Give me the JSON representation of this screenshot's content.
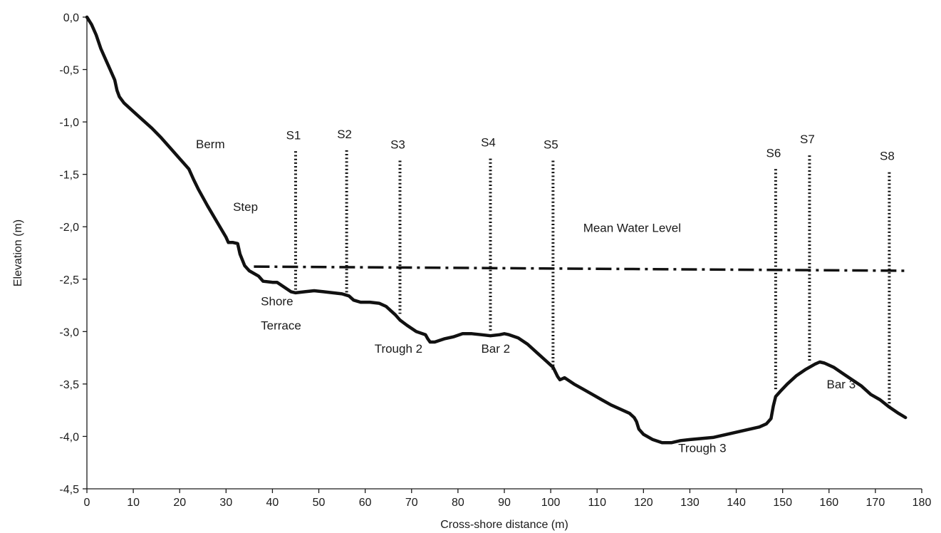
{
  "chart_data": {
    "type": "line",
    "title": "",
    "xlabel": "Cross-shore distance (m)",
    "ylabel": "Elevation (m)",
    "xlim": [
      0,
      180
    ],
    "ylim": [
      -4.5,
      0
    ],
    "x_ticks": [
      0,
      10,
      20,
      30,
      40,
      50,
      60,
      70,
      80,
      90,
      100,
      110,
      120,
      130,
      140,
      150,
      160,
      170,
      180
    ],
    "x_tick_labels": [
      "0",
      "10",
      "20",
      "30",
      "40",
      "50",
      "60",
      "70",
      "80",
      "90",
      "100",
      "110",
      "120",
      "130",
      "140",
      "150",
      "160",
      "170",
      "180"
    ],
    "y_ticks": [
      0,
      -0.5,
      -1,
      -1.5,
      -2,
      -2.5,
      -3,
      -3.5,
      -4,
      -4.5
    ],
    "y_tick_labels": [
      "0,0",
      "-0,5",
      "-1,0",
      "-1,5",
      "-2,0",
      "-2,5",
      "-3,0",
      "-3,5",
      "-4,0",
      "-4,5"
    ],
    "grid": false,
    "legend": "none",
    "series": [
      {
        "x": [
          0,
          1,
          2,
          3,
          4,
          5,
          6,
          6.5,
          7,
          8,
          10,
          12,
          14,
          16,
          18,
          20,
          22,
          23,
          24,
          26,
          28,
          30,
          30.5,
          31.5,
          32.5,
          33,
          34,
          35,
          37,
          38,
          40,
          41,
          42,
          43,
          44,
          45,
          47,
          49,
          51,
          53,
          55,
          56.5,
          57.5,
          59,
          61,
          63,
          64.5,
          65.5,
          66.5,
          67.5,
          69,
          71,
          73,
          73.5,
          74,
          75,
          77,
          79,
          81,
          83,
          85,
          87,
          89,
          90,
          91,
          93,
          95,
          97,
          99,
          100.5,
          101.5,
          102,
          103,
          105,
          107,
          109,
          111,
          113,
          115,
          117,
          118,
          118.5,
          119,
          120,
          122,
          124,
          126,
          128,
          130,
          135,
          140,
          145,
          146.5,
          147.5,
          148,
          148.5,
          149.5,
          151,
          153,
          155,
          157,
          158,
          159,
          161,
          163,
          165,
          167,
          169,
          171,
          173,
          175,
          176.5
        ],
        "y": [
          0,
          -0.07,
          -0.17,
          -0.3,
          -0.4,
          -0.5,
          -0.6,
          -0.7,
          -0.76,
          -0.82,
          -0.9,
          -0.98,
          -1.06,
          -1.15,
          -1.25,
          -1.35,
          -1.45,
          -1.55,
          -1.64,
          -1.8,
          -1.95,
          -2.1,
          -2.15,
          -2.15,
          -2.16,
          -2.26,
          -2.37,
          -2.42,
          -2.47,
          -2.52,
          -2.53,
          -2.53,
          -2.56,
          -2.59,
          -2.62,
          -2.63,
          -2.62,
          -2.61,
          -2.62,
          -2.63,
          -2.64,
          -2.66,
          -2.7,
          -2.72,
          -2.72,
          -2.73,
          -2.76,
          -2.8,
          -2.84,
          -2.89,
          -2.94,
          -3.0,
          -3.03,
          -3.07,
          -3.1,
          -3.1,
          -3.07,
          -3.05,
          -3.02,
          -3.02,
          -3.03,
          -3.04,
          -3.03,
          -3.02,
          -3.03,
          -3.06,
          -3.12,
          -3.2,
          -3.28,
          -3.34,
          -3.43,
          -3.46,
          -3.44,
          -3.5,
          -3.55,
          -3.6,
          -3.65,
          -3.7,
          -3.74,
          -3.78,
          -3.82,
          -3.86,
          -3.93,
          -3.98,
          -4.03,
          -4.06,
          -4.06,
          -4.04,
          -4.03,
          -4.01,
          -3.96,
          -3.91,
          -3.88,
          -3.83,
          -3.71,
          -3.62,
          -3.57,
          -3.5,
          -3.42,
          -3.36,
          -3.31,
          -3.29,
          -3.3,
          -3.34,
          -3.4,
          -3.46,
          -3.52,
          -3.6,
          -3.65,
          -3.72,
          -3.78,
          -3.82
        ]
      },
      {
        "name": "Mean Water Level",
        "x": [
          36,
          177
        ],
        "y": [
          -2.38,
          -2.42
        ]
      }
    ],
    "sensors": [
      {
        "label": "S1",
        "x": 45,
        "y_top": -1.28,
        "y_bottom": -2.6
      },
      {
        "label": "S2",
        "x": 56,
        "y_top": -1.27,
        "y_bottom": -2.63
      },
      {
        "label": "S3",
        "x": 67.5,
        "y_top": -1.37,
        "y_bottom": -2.83
      },
      {
        "label": "S4",
        "x": 87,
        "y_top": -1.35,
        "y_bottom": -3.0
      },
      {
        "label": "S5",
        "x": 100.5,
        "y_top": -1.37,
        "y_bottom": -3.38
      },
      {
        "label": "S6",
        "x": 148.5,
        "y_top": -1.45,
        "y_bottom": -3.57
      },
      {
        "label": "S7",
        "x": 155.8,
        "y_top": -1.32,
        "y_bottom": -3.3
      },
      {
        "label": "S8",
        "x": 173,
        "y_top": -1.48,
        "y_bottom": -3.72
      }
    ],
    "annotations": [
      {
        "text": "Berm",
        "x": 23.5,
        "y": -1.25
      },
      {
        "text": "Step",
        "x": 31.5,
        "y": -1.85
      },
      {
        "text": "Mean Water Level",
        "x": 107,
        "y": -2.05
      },
      {
        "text": "Shore",
        "x": 37.5,
        "y": -2.75
      },
      {
        "text": "Terrace",
        "x": 37.5,
        "y": -2.98
      },
      {
        "text": "Trough 2",
        "x": 62,
        "y": -3.2
      },
      {
        "text": "Bar 2",
        "x": 85,
        "y": -3.2
      },
      {
        "text": "Trough 3",
        "x": 127.5,
        "y": -4.15
      },
      {
        "text": "Bar 3",
        "x": 159.5,
        "y": -3.54
      }
    ]
  }
}
